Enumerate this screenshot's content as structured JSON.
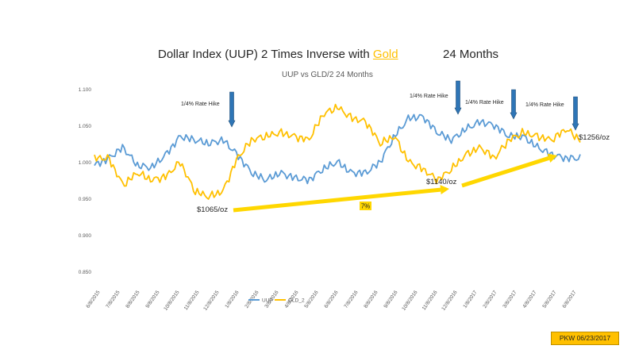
{
  "header": {
    "title_prefix": "Dollar Index (UUP) 2 Times Inverse with ",
    "title_gold": "Gold",
    "title_suffix": "24 Months",
    "subtitle": "UUP vs GLD/2     24 Months"
  },
  "stamp": "PKW 06/23/2017",
  "colors": {
    "uup": "#5b9bd5",
    "gld": "#ffc000",
    "arrow": "#2e75b6",
    "trend": "#ffd700",
    "gold_title": "#ffc000"
  },
  "chart_data": {
    "type": "line",
    "title": "UUP vs GLD/2     24 Months",
    "ylim": [
      0.85,
      1.1
    ],
    "y_ticks": [
      "0.850",
      "0.900",
      "0.950",
      "1.000",
      "1.050",
      "1.100"
    ],
    "x_tick_labels": [
      "6/8/2015",
      "7/8/2015",
      "8/8/2015",
      "9/8/2015",
      "10/8/2015",
      "11/8/2015",
      "12/8/2015",
      "1/8/2016",
      "2/8/2016",
      "3/8/2016",
      "4/8/2016",
      "5/8/2016",
      "6/8/2016",
      "7/8/2016",
      "8/8/2016",
      "9/8/2016",
      "10/8/2016",
      "11/8/2016",
      "12/8/2016",
      "1/8/2017",
      "2/8/2017",
      "3/8/2017",
      "4/8/2017",
      "5/8/2017",
      "6/8/2017"
    ],
    "legend": [
      "UUP",
      "GLD_2"
    ],
    "legend_position": "bottom",
    "series": [
      {
        "name": "UUP",
        "values": [
          0.995,
          1.005,
          1.02,
          0.995,
          0.992,
          1.01,
          1.035,
          1.03,
          1.025,
          1.03,
          1.01,
          0.985,
          0.975,
          0.985,
          0.978,
          0.975,
          0.99,
          1.0,
          0.985,
          0.985,
          1.0,
          1.035,
          1.06,
          1.062,
          1.04,
          1.03,
          1.045,
          1.055,
          1.05,
          1.035,
          1.035,
          1.02,
          1.01,
          1.005,
          1.005
        ]
      },
      {
        "name": "GLD_2",
        "values": [
          1.005,
          1.005,
          0.968,
          0.985,
          0.975,
          0.98,
          1.0,
          0.96,
          0.952,
          0.96,
          1.005,
          1.03,
          1.035,
          1.04,
          1.035,
          1.03,
          1.065,
          1.075,
          1.06,
          1.055,
          1.025,
          1.035,
          1.0,
          0.99,
          0.975,
          0.99,
          1.01,
          1.02,
          1.005,
          1.03,
          1.04,
          1.035,
          1.03,
          1.045,
          1.03
        ]
      }
    ],
    "annotations": [
      {
        "text": "1/4% Rate Hike",
        "date": "12/16/2015"
      },
      {
        "text": "1/4% Rate Hike",
        "date": "12/14/2016"
      },
      {
        "text": "1/4% Rate Hike",
        "date": "3/15/2017"
      },
      {
        "text": "1/4% Rate Hike",
        "date": "6/14/2017"
      }
    ],
    "price_labels": [
      "$1065/oz",
      "$1140/oz",
      "$1256/oz"
    ],
    "trend_label": "7%"
  }
}
